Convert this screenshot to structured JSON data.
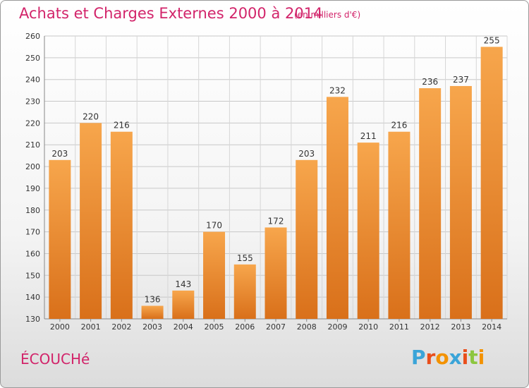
{
  "header": {
    "title": "Achats et Charges Externes 2000 à 2014",
    "subtitle": "(en milliers d'€)"
  },
  "footer": {
    "commune": "ÉCOUCHé",
    "logo_text": "Proxiti"
  },
  "colors": {
    "title": "#d2246a",
    "bar_top": "#f7a64c",
    "bar_bottom": "#d9701a",
    "logo_letters": [
      "#3aa4d8",
      "#e94e1b",
      "#f39200",
      "#3aa4d8",
      "#e94e1b",
      "#8cc63f",
      "#f39200"
    ]
  },
  "chart_data": {
    "type": "bar",
    "categories": [
      "2000",
      "2001",
      "2002",
      "2003",
      "2004",
      "2005",
      "2006",
      "2007",
      "2008",
      "2009",
      "2010",
      "2011",
      "2012",
      "2013",
      "2014"
    ],
    "values": [
      203,
      220,
      216,
      136,
      143,
      170,
      155,
      172,
      203,
      232,
      211,
      216,
      236,
      237,
      255
    ],
    "title": "Achats et Charges Externes 2000 à 2014",
    "xlabel": "",
    "ylabel": "",
    "ylim": [
      130,
      260
    ],
    "yticks": [
      130,
      140,
      150,
      160,
      170,
      180,
      190,
      200,
      210,
      220,
      230,
      240,
      250,
      260
    ],
    "grid": true,
    "legend": "none",
    "data_labels": true
  }
}
